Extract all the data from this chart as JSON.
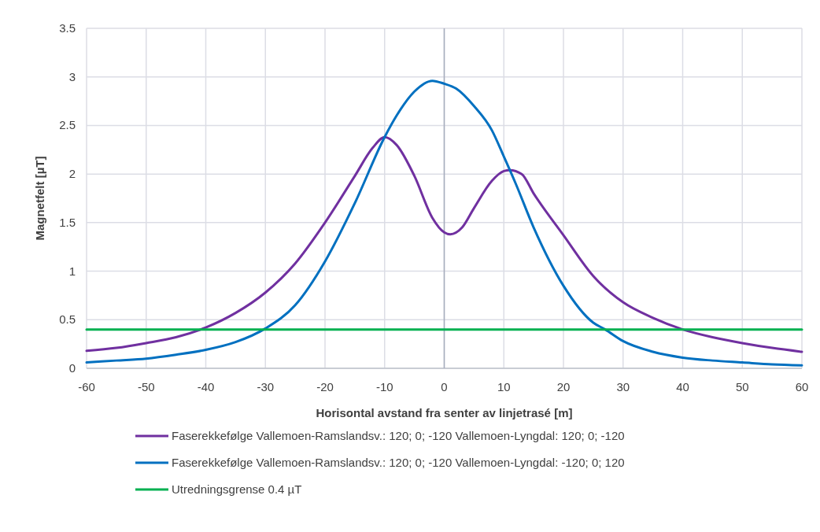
{
  "chart_data": {
    "type": "line",
    "xlabel": "Horisontal avstand fra senter av linjetrasé [m]",
    "ylabel": "Magnetfelt [µT]",
    "xlim": [
      -60,
      60
    ],
    "xticks": [
      -60,
      -50,
      -40,
      -30,
      -20,
      -10,
      0,
      10,
      20,
      30,
      40,
      50,
      60
    ],
    "ylim": [
      0,
      3.5
    ],
    "yticks": [
      0,
      0.5,
      1,
      1.5,
      2,
      2.5,
      3,
      3.5
    ],
    "grid": true,
    "legend": "bottom",
    "marker": "none",
    "line_style": "solid",
    "ref_lines": [
      {
        "axis": "x",
        "value": 0,
        "color": "#a6adbd"
      }
    ],
    "series": [
      {
        "name": "Faserekkefølge Vallemoen-Ramslandsv.: 120; 0; -120 Vallemoen-Lyngdal: 120; 0; -120",
        "color": "#7030a0",
        "x": [
          -60,
          -55,
          -50,
          -45,
          -40,
          -35,
          -30,
          -25,
          -20,
          -15,
          -12,
          -10,
          -8,
          -5,
          -2,
          0,
          1,
          3,
          5,
          8,
          10,
          11,
          13,
          15,
          20,
          25,
          30,
          35,
          40,
          45,
          50,
          55,
          60
        ],
        "values": [
          0.18,
          0.21,
          0.26,
          0.32,
          0.42,
          0.57,
          0.78,
          1.08,
          1.5,
          1.98,
          2.27,
          2.38,
          2.3,
          1.98,
          1.55,
          1.4,
          1.38,
          1.45,
          1.65,
          1.93,
          2.03,
          2.04,
          2.0,
          1.8,
          1.37,
          0.95,
          0.68,
          0.52,
          0.4,
          0.32,
          0.26,
          0.21,
          0.17
        ]
      },
      {
        "name": "Faserekkefølge Vallemoen-Ramslandsv.: 120; 0; -120 Vallemoen-Lyngdal: -120; 0; 120",
        "color": "#0070c0",
        "x": [
          -60,
          -55,
          -50,
          -45,
          -40,
          -35,
          -30,
          -25,
          -20,
          -15,
          -10,
          -8,
          -5,
          -2,
          0,
          2,
          5,
          8,
          10,
          12,
          15,
          20,
          25,
          27,
          30,
          35,
          40,
          45,
          50,
          55,
          60
        ],
        "values": [
          0.06,
          0.08,
          0.1,
          0.14,
          0.19,
          0.27,
          0.41,
          0.65,
          1.1,
          1.7,
          2.38,
          2.6,
          2.85,
          2.96,
          2.93,
          2.88,
          2.7,
          2.45,
          2.18,
          1.9,
          1.45,
          0.85,
          0.47,
          0.4,
          0.28,
          0.17,
          0.11,
          0.08,
          0.06,
          0.04,
          0.03
        ]
      },
      {
        "name": "Utredningsgrense 0.4 µT",
        "color": "#00b050",
        "x": [
          -60,
          60
        ],
        "values": [
          0.4,
          0.4
        ]
      }
    ]
  }
}
